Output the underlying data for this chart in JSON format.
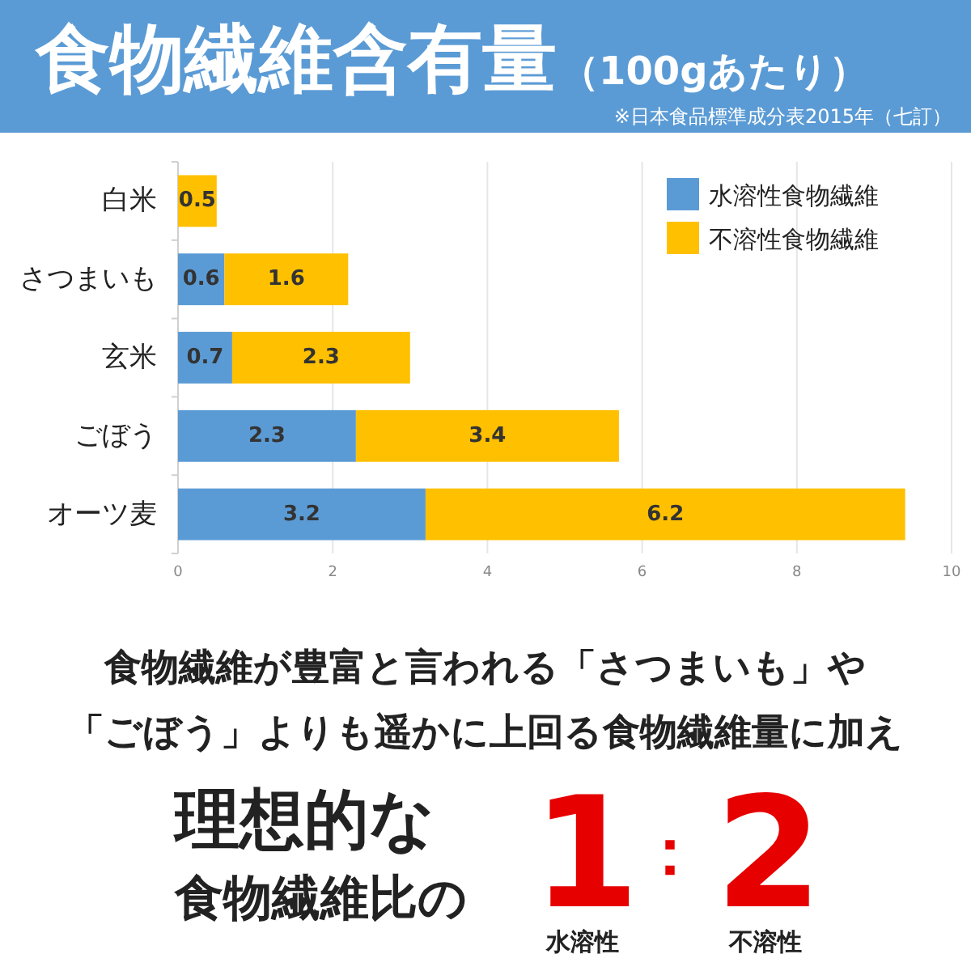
{
  "chart_data": {
    "type": "bar",
    "orientation": "horizontal",
    "stacked": true,
    "title": "食物繊維含有量",
    "subtitle": "（100gあたり）",
    "categories": [
      "白米",
      "さつまいも",
      "玄米",
      "ごぼう",
      "オーツ麦"
    ],
    "series": [
      {
        "name": "水溶性食物繊維",
        "color": "#5b9bd5",
        "values": [
          null,
          0.6,
          0.7,
          2.3,
          3.2
        ]
      },
      {
        "name": "不溶性食物繊維",
        "color": "#ffc000",
        "values": [
          0.5,
          1.6,
          2.3,
          3.4,
          6.2
        ]
      }
    ],
    "xlim": [
      0,
      10
    ],
    "xticks": [
      0,
      2,
      4,
      6,
      8,
      10
    ],
    "grid": "x",
    "legend": "top right",
    "data_labels": true,
    "annotations": [
      "※日本食品標準成分表2015年（七訂）",
      "食物繊維が豊富と言われる「さつまいも」や",
      "「ごぼう」よりも遥かに上回る食物繊維量に加え",
      "理想的な",
      "食物繊維比の",
      "1",
      "：",
      "2",
      "水溶性",
      "不溶性"
    ]
  }
}
